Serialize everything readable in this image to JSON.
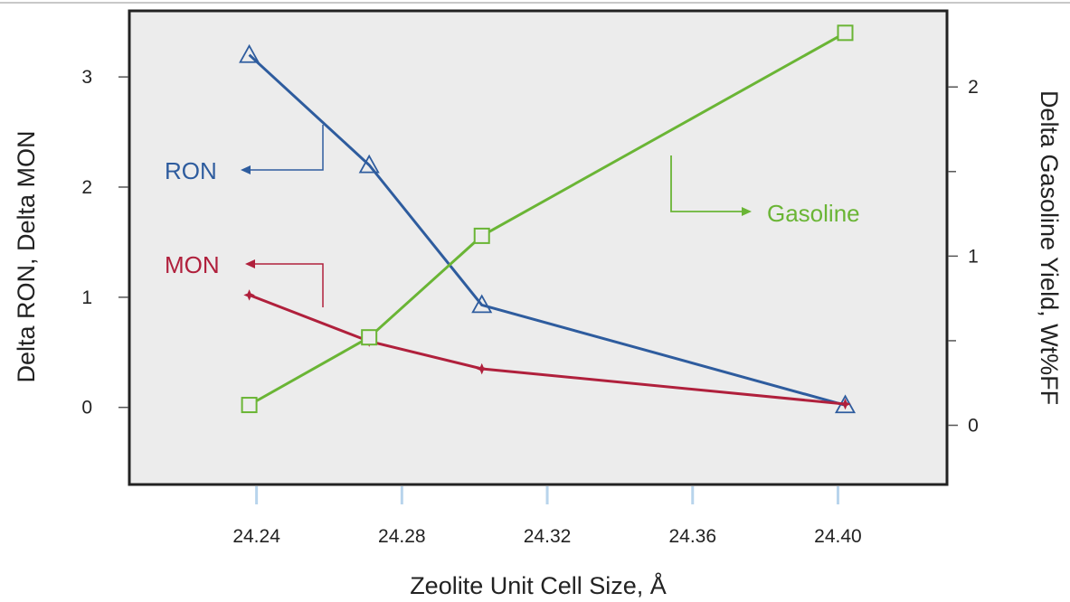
{
  "chart_data": {
    "type": "line",
    "title": "",
    "xlabel": "Zeolite Unit Cell Size, Å",
    "ylabel_left": "Delta RON, Delta MON",
    "ylabel_right": "Delta Gasoline Yield, Wt%FF",
    "x_ticks": [
      "24.24",
      "24.28",
      "24.32",
      "24.36",
      "24.40"
    ],
    "x_tick_values": [
      24.24,
      24.28,
      24.32,
      24.36,
      24.4
    ],
    "xlim": [
      24.205,
      24.43
    ],
    "y_left_ticks": [
      "0",
      "1",
      "2",
      "3"
    ],
    "y_left_tick_values": [
      0,
      1,
      2,
      3
    ],
    "ylim_left": [
      -0.7,
      3.6
    ],
    "y_right_ticks": [
      "0",
      "1",
      "2"
    ],
    "y_right_tick_values": [
      0,
      1,
      2
    ],
    "y_right_minor_values": [
      0.5,
      1.5
    ],
    "ylim_right": [
      -0.35,
      2.45
    ],
    "grid": false,
    "legend": "none (inline annotations)",
    "series": [
      {
        "name": "RON",
        "axis": "left",
        "marker": "triangle",
        "color": "#2e5c9e",
        "x": [
          24.238,
          24.271,
          24.302,
          24.402
        ],
        "y": [
          3.2,
          2.2,
          0.93,
          0.02
        ]
      },
      {
        "name": "MON",
        "axis": "left",
        "marker": "star",
        "color": "#b0203c",
        "x": [
          24.238,
          24.271,
          24.302,
          24.402
        ],
        "y": [
          1.02,
          0.6,
          0.35,
          0.03
        ]
      },
      {
        "name": "Gasoline",
        "axis": "right",
        "marker": "square",
        "color": "#6ab535",
        "x": [
          24.238,
          24.271,
          24.302,
          24.402
        ],
        "y": [
          0.12,
          0.52,
          1.12,
          2.32
        ]
      }
    ],
    "annotations": [
      {
        "text": "RON",
        "color": "#2e5c9e",
        "arrow": "left"
      },
      {
        "text": "MON",
        "color": "#b0203c",
        "arrow": "left"
      },
      {
        "text": "Gasoline",
        "color": "#6ab535",
        "arrow": "right"
      }
    ],
    "colors": {
      "plot_background": "#ececec",
      "frame": "#222222",
      "tick_mark": "#b8d4ec"
    }
  }
}
